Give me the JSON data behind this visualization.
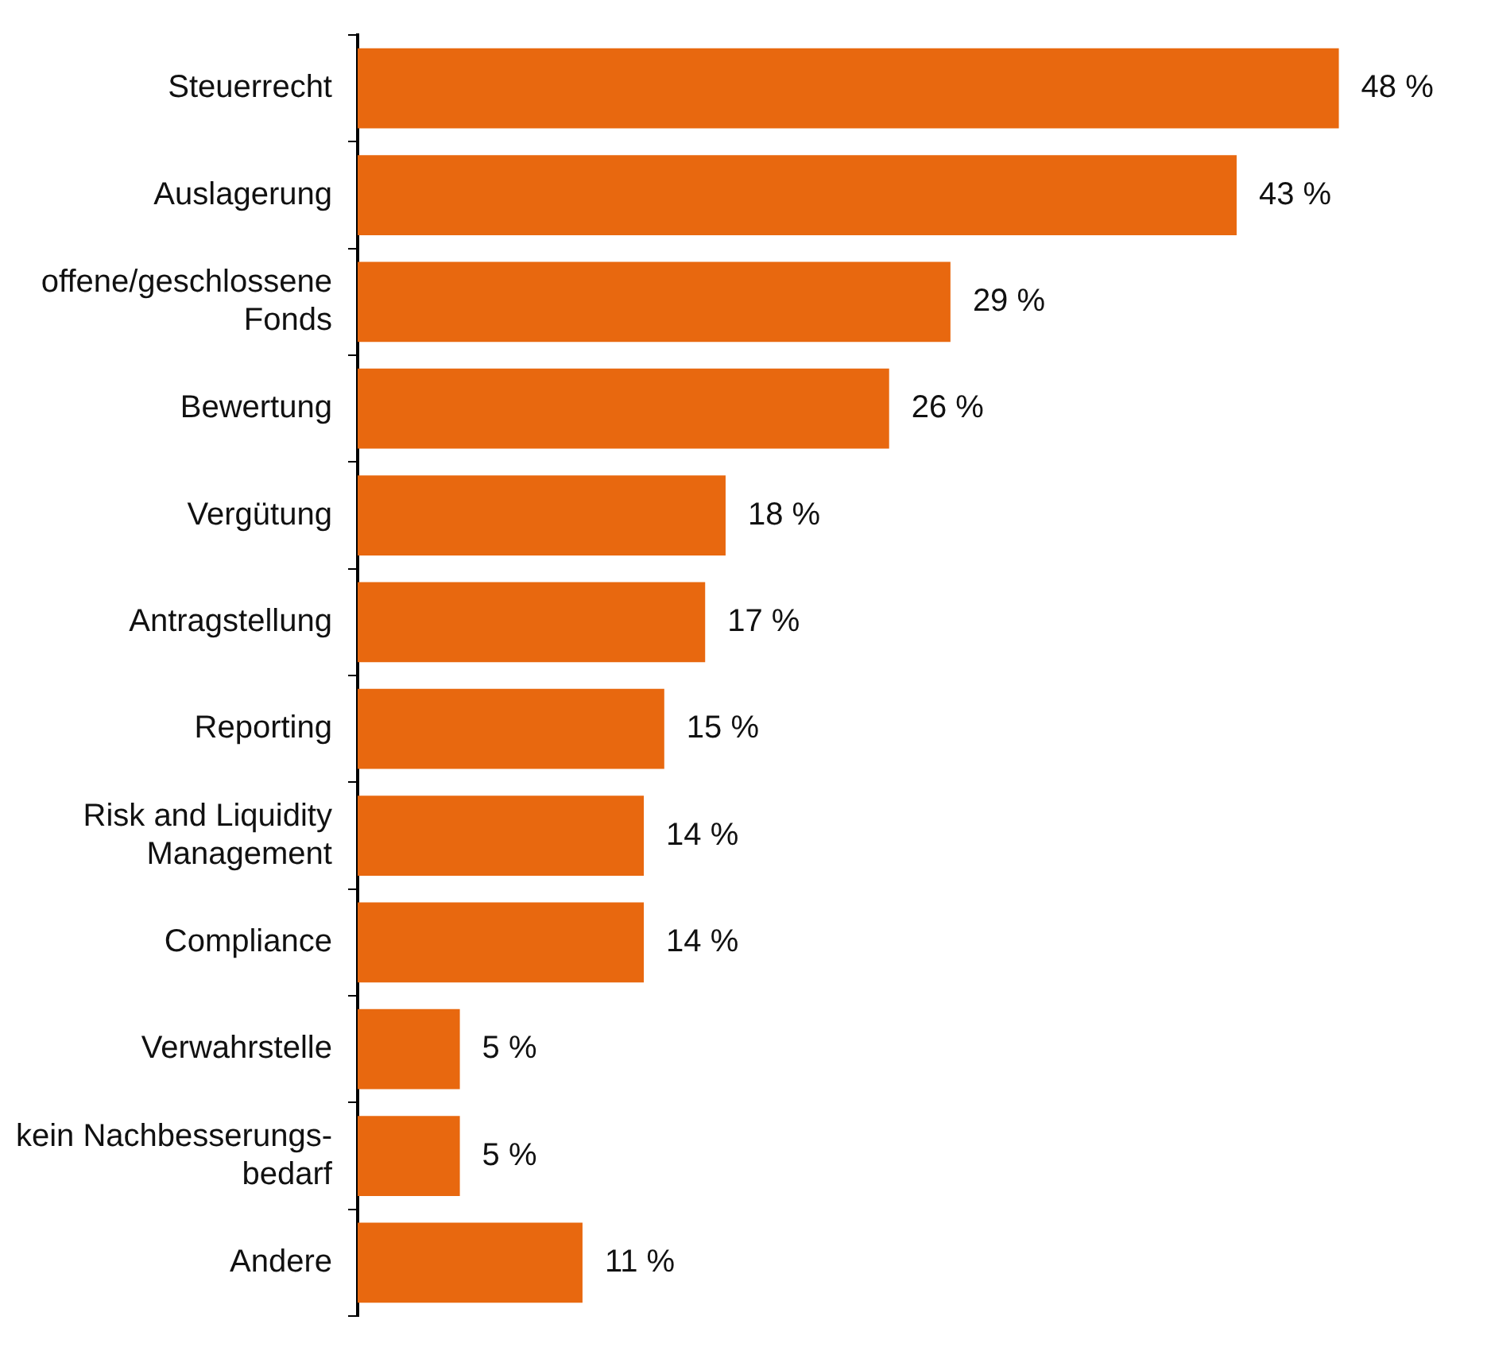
{
  "chart_data": {
    "type": "bar",
    "orientation": "horizontal",
    "categories": [
      "Steuerrecht",
      "Auslagerung",
      "offene/geschlossene Fonds",
      "Bewertung",
      "Vergütung",
      "Antragstellung",
      "Reporting",
      "Risk and Liquidity Management",
      "Compliance",
      "Verwahrstelle",
      "kein Nachbesserungs-bedarf",
      "Andere"
    ],
    "values": [
      48,
      43,
      29,
      26,
      18,
      17,
      15,
      14,
      14,
      5,
      5,
      11
    ],
    "value_labels": [
      "48 %",
      "43 %",
      "29 %",
      "26 %",
      "18 %",
      "17 %",
      "15 %",
      "14 %",
      "14 %",
      "5 %",
      "5 %",
      "11 %"
    ],
    "color": "#e8680f",
    "grid": false,
    "legend": false
  }
}
